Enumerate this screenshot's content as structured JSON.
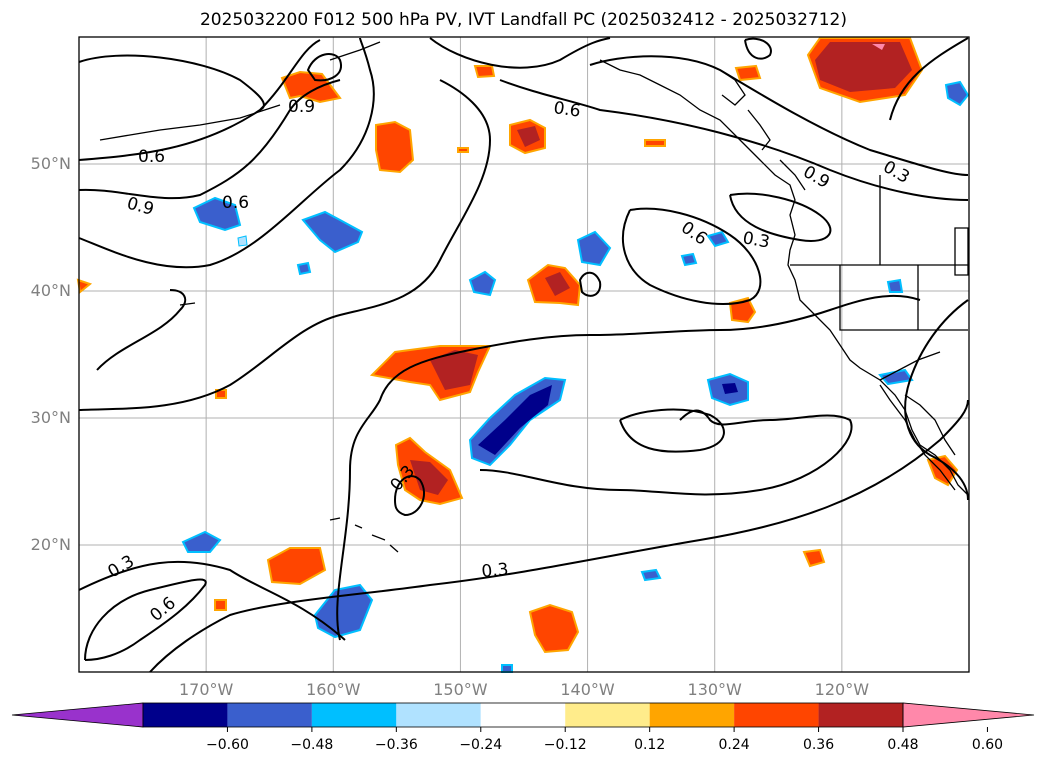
{
  "title": "2025032200 F012 500 hPa PV, IVT Landfall PC (2025032412 - 2025032712)",
  "map": {
    "lon_range": [
      -180,
      -110
    ],
    "lat_range": [
      10,
      60
    ],
    "lat_ticks": [
      {
        "value": 50,
        "label": "50°N"
      },
      {
        "value": 40,
        "label": "40°N"
      },
      {
        "value": 30,
        "label": "30°N"
      },
      {
        "value": 20,
        "label": "20°N"
      }
    ],
    "lon_ticks": [
      {
        "value": -170,
        "label": "170°W"
      },
      {
        "value": -160,
        "label": "160°W"
      },
      {
        "value": -150,
        "label": "150°W"
      },
      {
        "value": -140,
        "label": "140°W"
      },
      {
        "value": -130,
        "label": "130°W"
      },
      {
        "value": -120,
        "label": "120°W"
      }
    ],
    "contour_labels": [
      "0.3",
      "0.6",
      "0.9"
    ]
  },
  "colorbar": {
    "ticks": [
      "−0.60",
      "−0.48",
      "−0.36",
      "−0.24",
      "−0.12",
      "0.12",
      "0.24",
      "0.36",
      "0.48",
      "0.60"
    ],
    "colors": [
      "#9932cc",
      "#00008b",
      "#3a5fcd",
      "#00bfff",
      "#b0e2ff",
      "#ffffff",
      "#ffec8b",
      "#ffa500",
      "#ff4500",
      "#b22222",
      "#ff88aa"
    ]
  }
}
